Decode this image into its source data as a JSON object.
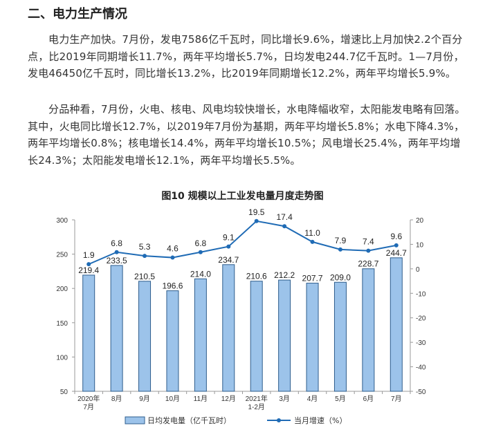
{
  "section_heading": "二、电力生产情况",
  "paragraphs": [
    "电力生产加快。7月份，发电7586亿千瓦时，同比增长9.6%，增速比上月加快2.2个百分点，比2019年同期增长11.7%，两年平均增长5.7%，日均发电244.7亿千瓦时。1—7月份，发电46450亿千瓦时，同比增长13.2%，比2019年同期增长12.2%，两年平均增长5.9%。",
    "分品种看，7月份，火电、核电、风电均较快增长，水电降幅收窄，太阳能发电略有回落。其中，火电同比增长12.7%，以2019年7月份为基期，两年平均增长5.8%；水电下降4.3%，两年平均增长0.8%；核电增长14.4%，两年平均增长10.5%；风电增长25.4%，两年平均增长24.3%；太阳能发电增长12.1%，两年平均增长5.5%。"
  ],
  "chart_title": "图10 规模以上工业发电量月度走势图",
  "chart_data": {
    "type": "bar",
    "categories": [
      [
        "2020年",
        "7月"
      ],
      [
        "8月"
      ],
      [
        "9月"
      ],
      [
        "10月"
      ],
      [
        "11月"
      ],
      [
        "12月"
      ],
      [
        "2021年",
        "1-2月"
      ],
      [
        "3月"
      ],
      [
        "4月"
      ],
      [
        "5月"
      ],
      [
        "6月"
      ],
      [
        "7月"
      ]
    ],
    "series": [
      {
        "name": "日均发电量（亿千瓦时）",
        "type": "bar",
        "axis": "left",
        "values": [
          219.4,
          233.5,
          210.5,
          196.6,
          214.0,
          234.7,
          210.6,
          212.2,
          207.7,
          209.0,
          228.7,
          244.7
        ],
        "labels": [
          "219.4",
          "233.5",
          "210.5",
          "196.6",
          "214.0",
          "234.7",
          "210.6",
          "212.2",
          "207.7",
          "209.0",
          "228.7",
          "244.7"
        ]
      },
      {
        "name": "当月增速（%）",
        "type": "line",
        "axis": "right",
        "values": [
          1.9,
          6.8,
          5.3,
          4.6,
          6.8,
          9.1,
          19.5,
          17.4,
          11.0,
          7.9,
          7.4,
          9.6
        ],
        "labels": [
          "1.9",
          "6.8",
          "5.3",
          "4.6",
          "6.8",
          "9.1",
          "19.5",
          "17.4",
          "11.0",
          "7.9",
          "7.4",
          "9.6"
        ]
      }
    ],
    "y_left": {
      "min": 50,
      "max": 300,
      "ticks": [
        "50",
        "100",
        "150",
        "200",
        "250",
        "300"
      ]
    },
    "y_right": {
      "min": -50,
      "max": 20,
      "ticks": [
        "-50",
        "-40",
        "-30",
        "-20",
        "-10",
        "0",
        "10",
        "20"
      ]
    },
    "grid": false,
    "legend_position": "bottom",
    "colors": {
      "bar_fill": "#9cc3ea",
      "bar_stroke": "#2e5d8c",
      "line": "#1f6bb5"
    }
  }
}
